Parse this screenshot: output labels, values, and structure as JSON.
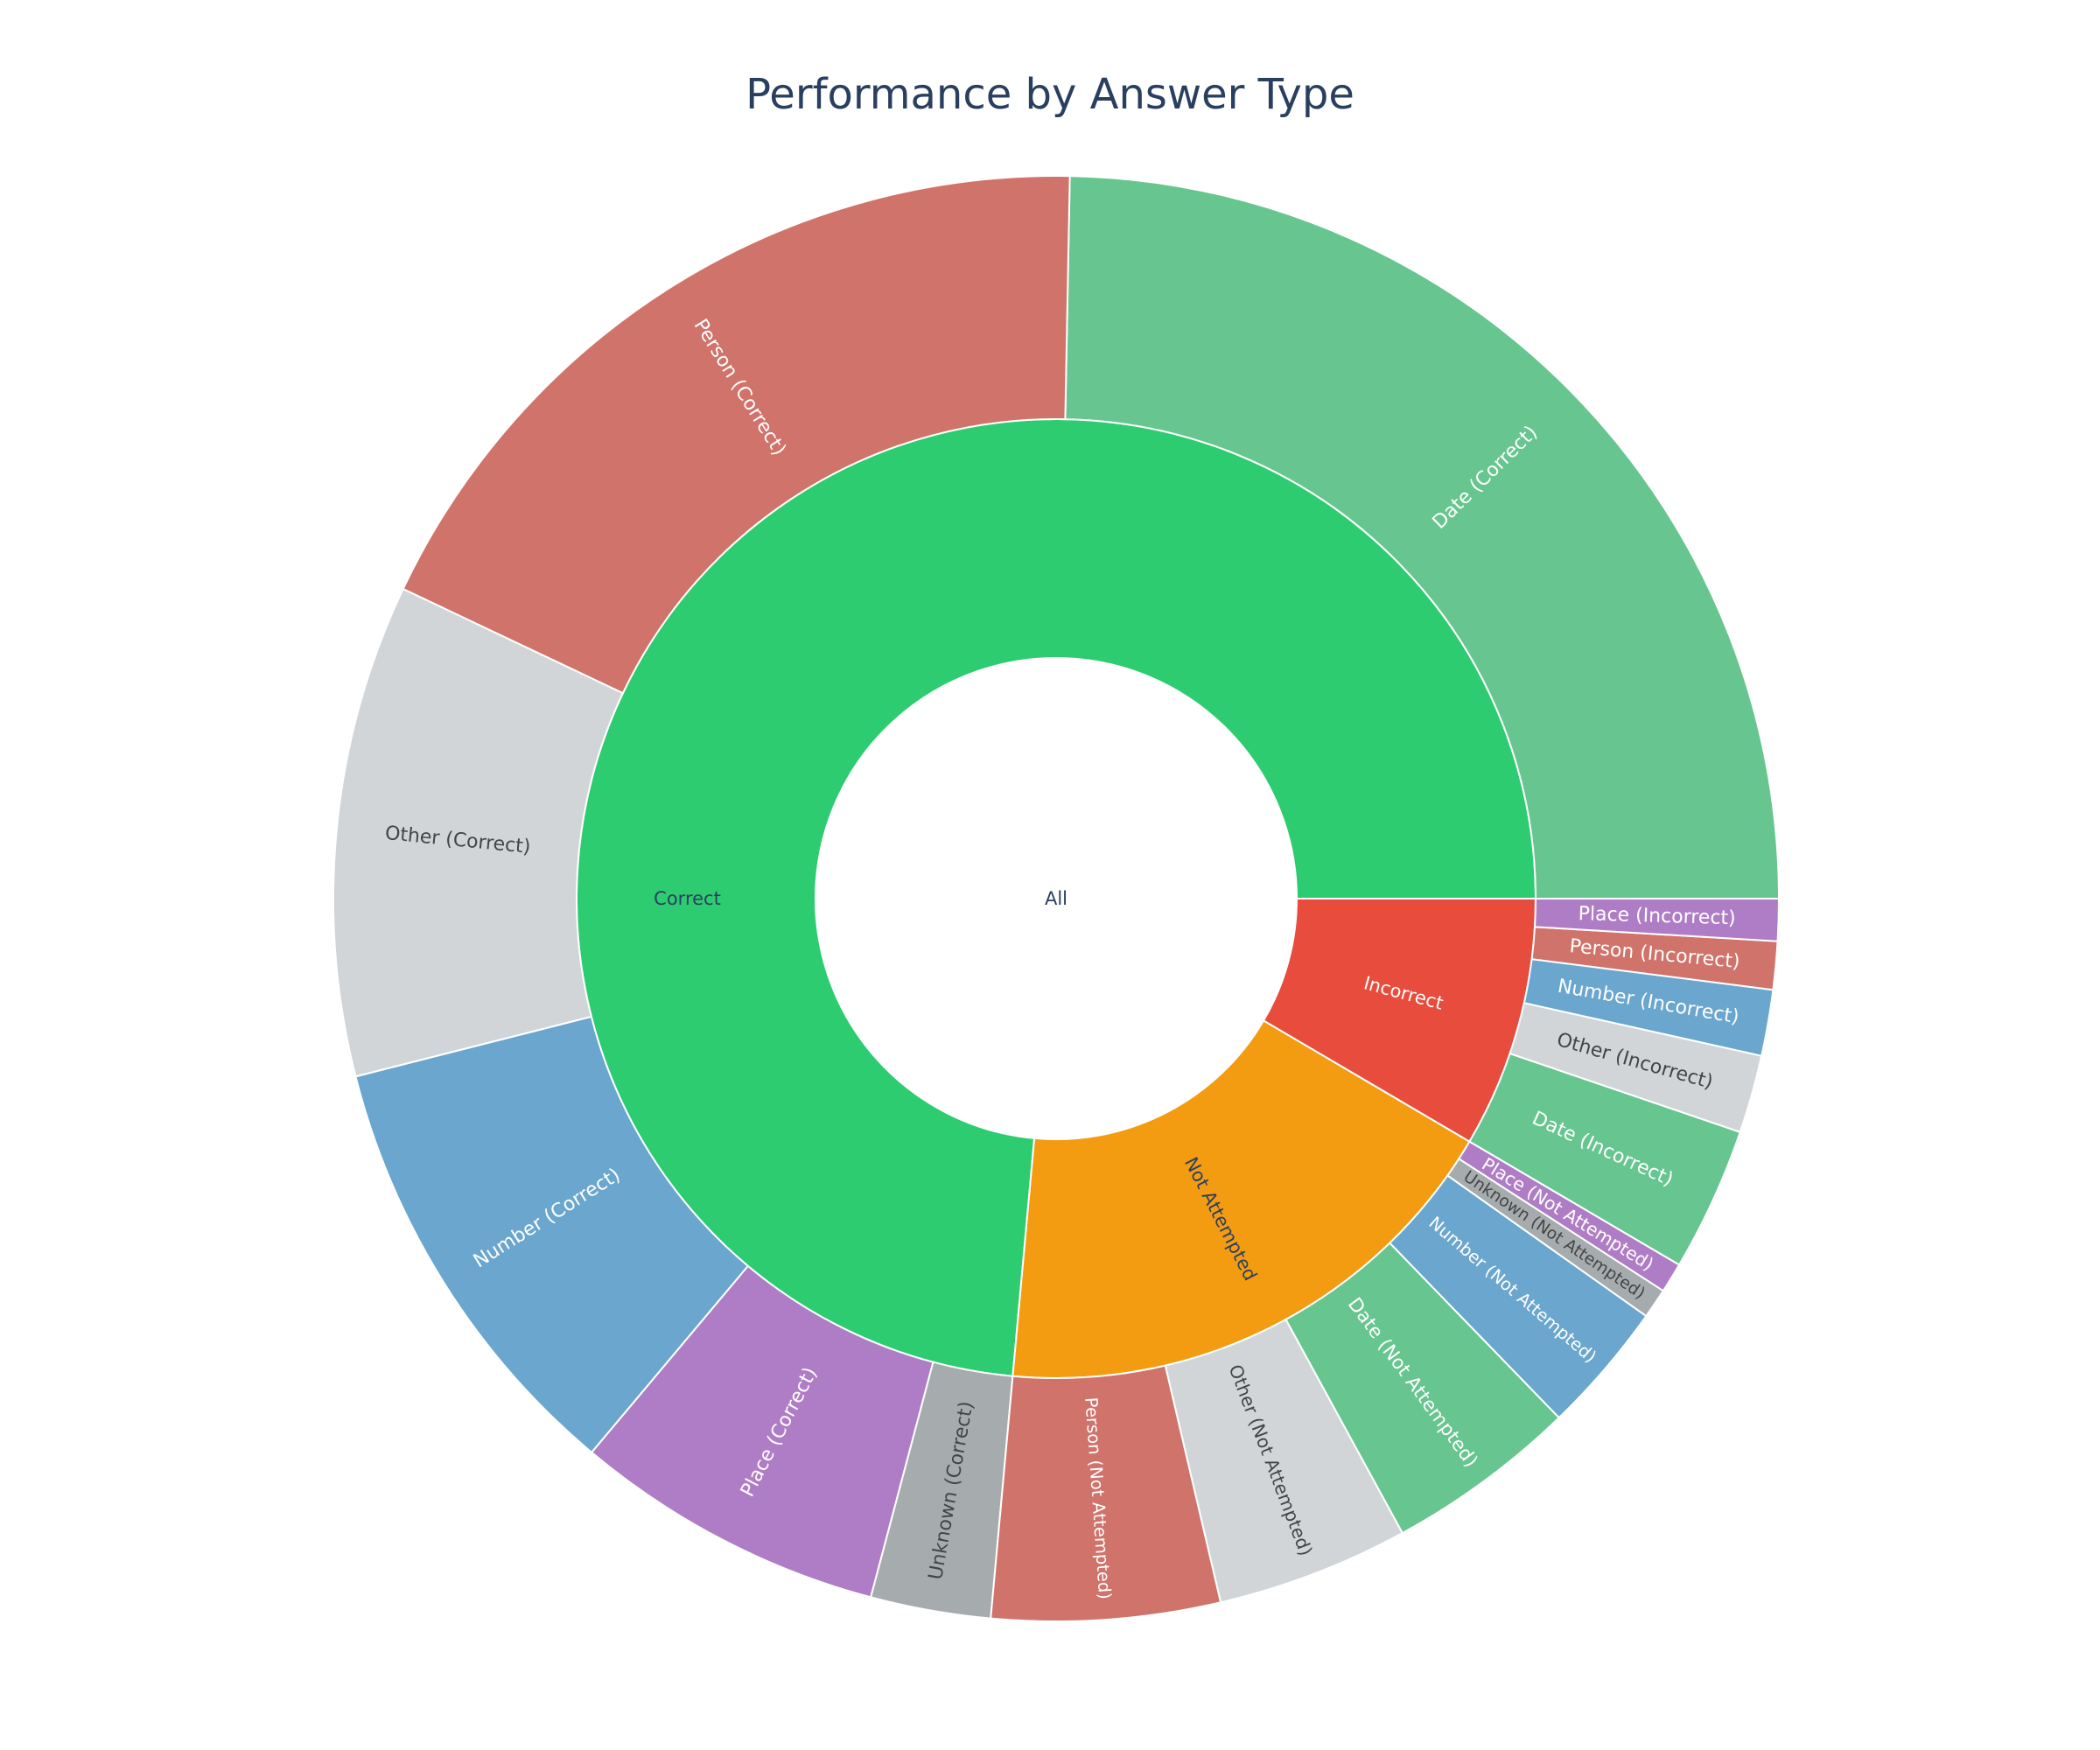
{
  "chart_data": {
    "type": "sunburst",
    "title": "Performance by Answer Type",
    "root": {
      "label": "All"
    },
    "categories": [
      {
        "label": "Correct",
        "color": "#2ecc71",
        "text_color": "#2a3f5f",
        "children": [
          {
            "label": "Date (Correct)",
            "value": 184,
            "color": "#67c58f",
            "text_color": "#ffffff"
          },
          {
            "label": "Person (Correct)",
            "value": 136,
            "color": "#d0736a",
            "text_color": "#ffffff"
          },
          {
            "label": "Other (Correct)",
            "value": 82,
            "color": "#d1d5d8",
            "text_color": "#444444"
          },
          {
            "label": "Number (Correct)",
            "value": 74,
            "color": "#6aa6cd",
            "text_color": "#ffffff"
          },
          {
            "label": "Place (Correct)",
            "value": 52,
            "color": "#af7dc5",
            "text_color": "#ffffff"
          },
          {
            "label": "Unknown (Correct)",
            "value": 20,
            "color": "#a6acad",
            "text_color": "#444444"
          }
        ]
      },
      {
        "label": "Not Attempted",
        "color": "#f39c12",
        "text_color": "#2a3f5f",
        "children": [
          {
            "label": "Person (Not Attempted)",
            "value": 38,
            "color": "#d0736a",
            "text_color": "#ffffff"
          },
          {
            "label": "Other (Not Attempted)",
            "value": 32,
            "color": "#d1d5d8",
            "text_color": "#444444"
          },
          {
            "label": "Date (Not Attempted)",
            "value": 32,
            "color": "#67c58f",
            "text_color": "#ffffff"
          },
          {
            "label": "Number (Not Attempted)",
            "value": 22,
            "color": "#6aa6cd",
            "text_color": "#ffffff"
          },
          {
            "label": "Unknown (Not Attempted)",
            "value": 5,
            "color": "#a6acad",
            "text_color": "#444444"
          },
          {
            "label": "Place (Not Attempted)",
            "value": 5,
            "color": "#af7dc5",
            "text_color": "#ffffff"
          }
        ]
      },
      {
        "label": "Incorrect",
        "color": "#e74c3c",
        "text_color": "#ffffff",
        "children": [
          {
            "label": "Date (Incorrect)",
            "value": 24,
            "color": "#67c58f",
            "text_color": "#ffffff"
          },
          {
            "label": "Other (Incorrect)",
            "value": 13,
            "color": "#d1d5d8",
            "text_color": "#444444"
          },
          {
            "label": "Number (Incorrect)",
            "value": 11,
            "color": "#6aa6cd",
            "text_color": "#ffffff"
          },
          {
            "label": "Person (Incorrect)",
            "value": 8,
            "color": "#d0736a",
            "text_color": "#ffffff"
          },
          {
            "label": "Place (Incorrect)",
            "value": 7,
            "color": "#af7dc5",
            "text_color": "#ffffff"
          }
        ]
      }
    ]
  }
}
